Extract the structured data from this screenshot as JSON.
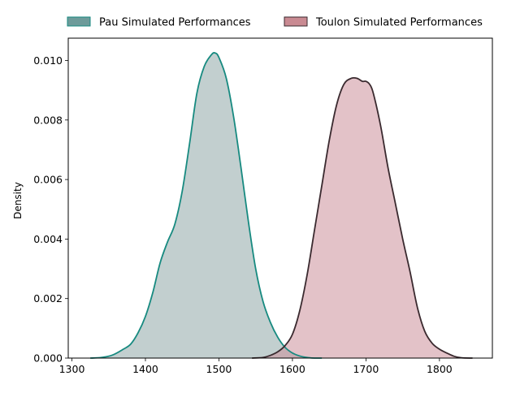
{
  "chart_data": {
    "type": "area",
    "title": "",
    "xlabel": "",
    "ylabel": "Density",
    "xlim": [
      1295,
      1872
    ],
    "ylim": [
      0,
      0.01075
    ],
    "xticks": [
      1300,
      1400,
      1500,
      1600,
      1700,
      1800
    ],
    "xtick_labels": [
      "1300",
      "1400",
      "1500",
      "1600",
      "1700",
      "1800"
    ],
    "yticks": [
      0,
      0.002,
      0.004,
      0.006,
      0.008,
      0.01
    ],
    "ytick_labels": [
      "0.000",
      "0.002",
      "0.004",
      "0.006",
      "0.008",
      "0.010"
    ],
    "grid": false,
    "legend_position": "top, outside plot",
    "series": [
      {
        "name": "Pau Simulated Performances",
        "line_color": "#178a80",
        "fill_color": "#8fa8a8",
        "legend_color": "#6e9b9a",
        "x": [
          1325,
          1340,
          1355,
          1370,
          1380,
          1390,
          1400,
          1410,
          1420,
          1430,
          1440,
          1450,
          1460,
          1470,
          1480,
          1490,
          1495,
          1500,
          1510,
          1520,
          1530,
          1540,
          1550,
          1560,
          1570,
          1580,
          1590,
          1600,
          1610,
          1620,
          1630,
          1640
        ],
        "y": [
          0.0,
          2e-05,
          0.0001,
          0.0003,
          0.00047,
          0.00085,
          0.0014,
          0.0022,
          0.0032,
          0.0039,
          0.0045,
          0.0056,
          0.0072,
          0.0089,
          0.0098,
          0.0102,
          0.01025,
          0.0101,
          0.0094,
          0.0081,
          0.0064,
          0.0046,
          0.003,
          0.0019,
          0.0012,
          0.0007,
          0.00036,
          0.00017,
          7e-05,
          2e-05,
          0.0,
          0.0
        ]
      },
      {
        "name": "Toulon Simulated Performances",
        "line_color": "#3a2a2f",
        "fill_color": "#cc8f9b",
        "legend_color": "#c98a92",
        "x": [
          1545,
          1560,
          1570,
          1580,
          1590,
          1600,
          1610,
          1620,
          1630,
          1640,
          1650,
          1660,
          1670,
          1680,
          1688,
          1695,
          1700,
          1705,
          1710,
          1720,
          1730,
          1740,
          1750,
          1760,
          1770,
          1780,
          1790,
          1800,
          1810,
          1820,
          1830,
          1845
        ],
        "y": [
          0.0,
          2e-05,
          9e-05,
          0.00021,
          0.00042,
          0.0008,
          0.0016,
          0.0028,
          0.0043,
          0.0058,
          0.0073,
          0.0085,
          0.0092,
          0.0094,
          0.0094,
          0.0093,
          0.0093,
          0.0092,
          0.0089,
          0.0078,
          0.0064,
          0.0052,
          0.004,
          0.0029,
          0.0017,
          0.0009,
          0.0005,
          0.0003,
          0.00017,
          6e-05,
          1e-05,
          0.0
        ]
      }
    ]
  }
}
